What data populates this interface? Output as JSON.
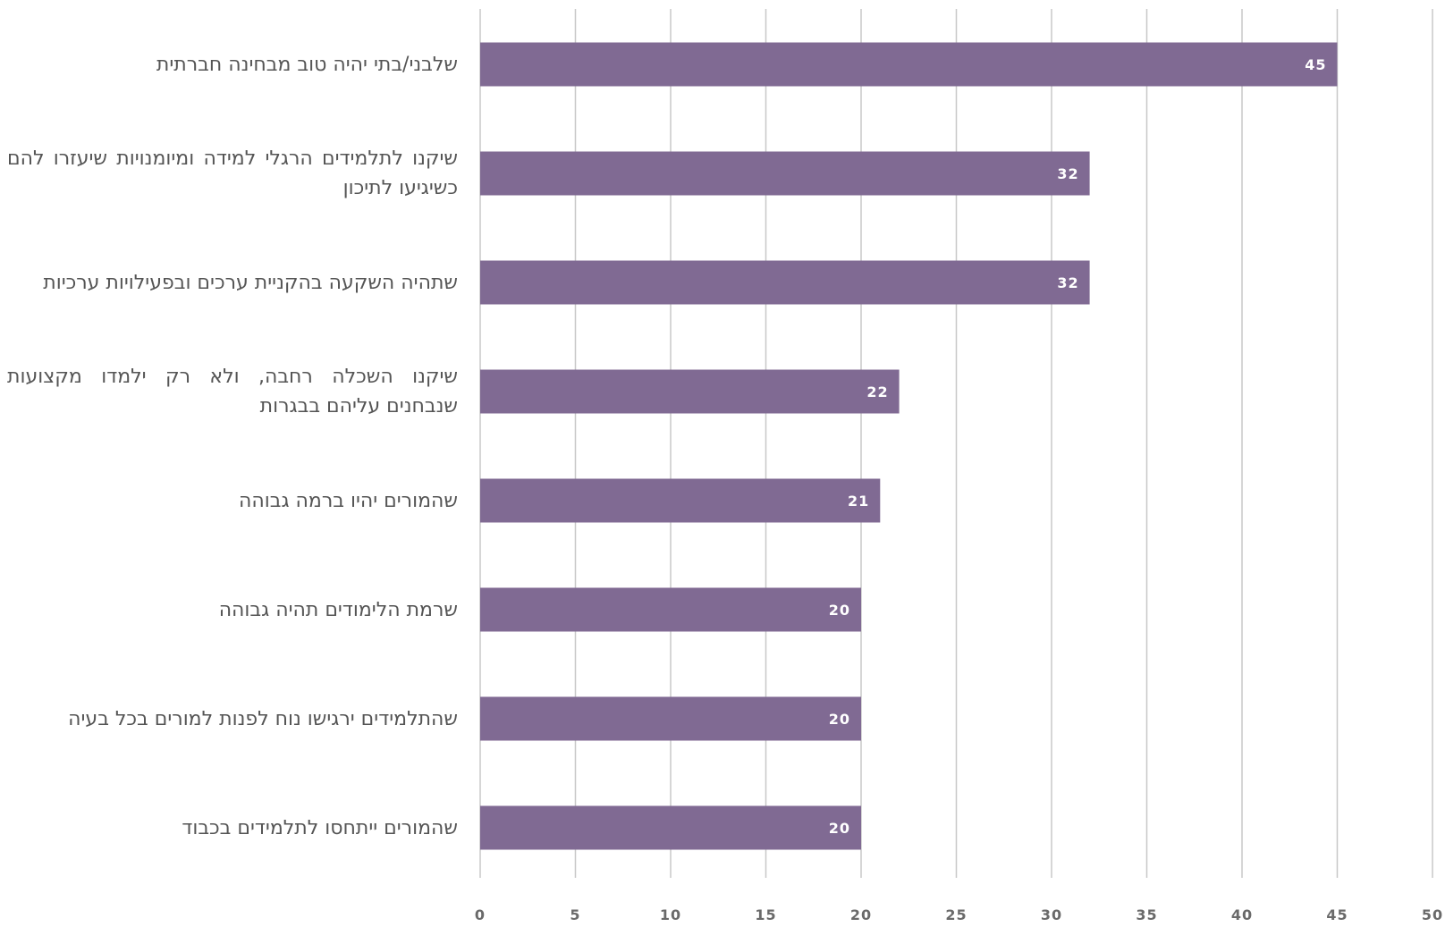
{
  "chart_data": {
    "type": "bar",
    "orientation": "horizontal",
    "categories": [
      "שלבני/בתי יהיה טוב מבחינה חברתית",
      "שיקנו לתלמידים הרגלי למידה ומיומנויות שיעזרו להם כשיגיעו לתיכון",
      "שתהיה השקעה בהקניית ערכים ובפעילויות ערכיות",
      "שיקנו השכלה רחבה, ולא רק ילמדו מקצועות שנבחנים עליהם בבגרות",
      "שהמורים יהיו ברמה גבוהה",
      "שרמת הלימודים תהיה גבוהה",
      "שהתלמידים ירגישו נוח לפנות למורים בכל בעיה",
      "שהמורים ייתחסו לתלמידים בכבוד"
    ],
    "values": [
      45,
      32,
      32,
      22,
      21,
      20,
      20,
      20
    ],
    "data_labels": [
      "45",
      "32",
      "32",
      "22",
      "21",
      "20",
      "20",
      "20"
    ],
    "xlim": [
      0,
      50
    ],
    "x_ticks": [
      0,
      5,
      10,
      15,
      20,
      25,
      30,
      35,
      40,
      45,
      50
    ],
    "x_tick_labels": [
      "0",
      "5",
      "10",
      "15",
      "20",
      "25",
      "30",
      "35",
      "40",
      "45",
      "50"
    ],
    "grid": true,
    "legend": "none",
    "colors": {
      "bar": "#806a93",
      "grid": "#c8c8c8",
      "tick_text": "#6a6a6a",
      "category_text": "#555555",
      "data_label_text": "#ffffff"
    }
  }
}
